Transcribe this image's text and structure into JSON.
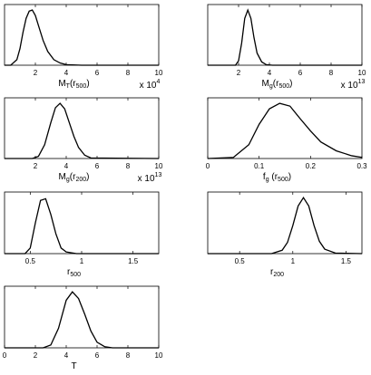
{
  "chart_data": [
    {
      "type": "line",
      "xlabel": [
        "M",
        "T",
        "(r",
        "500",
        ")"
      ],
      "offset_text": [
        "x 10",
        "4"
      ],
      "xlim": [
        0,
        10
      ],
      "ylim": [
        0,
        1.1
      ],
      "xticks": [
        2,
        4,
        6,
        8,
        10
      ],
      "color": "#000000",
      "x": [
        0,
        0.4,
        0.8,
        1.0,
        1.2,
        1.4,
        1.6,
        1.8,
        2.0,
        2.2,
        2.5,
        2.8,
        3.2,
        3.6,
        4.0,
        5,
        10
      ],
      "values": [
        0,
        0,
        0.1,
        0.3,
        0.6,
        0.85,
        0.98,
        1.0,
        0.9,
        0.72,
        0.45,
        0.25,
        0.1,
        0.04,
        0.01,
        0,
        0
      ]
    },
    {
      "type": "line",
      "xlabel": [
        "M",
        "g",
        "(r",
        "500",
        ")"
      ],
      "offset_text": [
        "x 10",
        "13"
      ],
      "xlim": [
        0,
        10
      ],
      "ylim": [
        0,
        1.1
      ],
      "xticks": [
        2,
        4,
        6,
        8,
        10
      ],
      "color": "#000000",
      "x": [
        0,
        1.8,
        2.0,
        2.2,
        2.4,
        2.6,
        2.8,
        3.0,
        3.2,
        3.5,
        3.8,
        4.2,
        10
      ],
      "values": [
        0,
        0,
        0.08,
        0.4,
        0.85,
        1.0,
        0.85,
        0.5,
        0.22,
        0.06,
        0.01,
        0,
        0
      ]
    },
    {
      "type": "line",
      "xlabel": [
        "M",
        "g",
        "(r",
        "200",
        ")"
      ],
      "offset_text": [
        "x 10",
        "13"
      ],
      "xlim": [
        0,
        10
      ],
      "ylim": [
        0,
        1.1
      ],
      "xticks": [
        2,
        4,
        6,
        8,
        10
      ],
      "color": "#000000",
      "x": [
        0,
        1.8,
        2.2,
        2.6,
        3.0,
        3.3,
        3.6,
        3.9,
        4.2,
        4.5,
        4.8,
        5.2,
        5.6,
        10
      ],
      "values": [
        0,
        0,
        0.04,
        0.25,
        0.65,
        0.92,
        1.0,
        0.9,
        0.65,
        0.4,
        0.2,
        0.06,
        0.01,
        0
      ]
    },
    {
      "type": "line",
      "xlabel": [
        "f",
        "g",
        " (r",
        "500",
        ")"
      ],
      "xlim": [
        0,
        0.3
      ],
      "ylim": [
        0,
        1.1
      ],
      "xticks": [
        0,
        0.1,
        0.2,
        0.3
      ],
      "color": "#000000",
      "x": [
        0,
        0.05,
        0.08,
        0.1,
        0.12,
        0.14,
        0.16,
        0.18,
        0.2,
        0.22,
        0.25,
        0.28,
        0.3
      ],
      "values": [
        0,
        0.02,
        0.25,
        0.62,
        0.9,
        1.0,
        0.95,
        0.72,
        0.5,
        0.3,
        0.14,
        0.05,
        0.02
      ]
    },
    {
      "type": "line",
      "xlabel": [
        "r",
        "500"
      ],
      "xlim": [
        0.25,
        1.75
      ],
      "ylim": [
        0,
        1.1
      ],
      "xticks": [
        0.5,
        1,
        1.5
      ],
      "color": "#000000",
      "x": [
        0.25,
        0.45,
        0.5,
        0.55,
        0.6,
        0.65,
        0.7,
        0.75,
        0.8,
        0.85,
        0.95,
        1.75
      ],
      "values": [
        0,
        0,
        0.1,
        0.55,
        0.95,
        0.98,
        0.7,
        0.35,
        0.1,
        0.03,
        0,
        0
      ]
    },
    {
      "type": "line",
      "xlabel": [
        "r",
        "200"
      ],
      "xlim": [
        0.2,
        1.65
      ],
      "ylim": [
        0,
        1.1
      ],
      "xticks": [
        0.5,
        1,
        1.5
      ],
      "color": "#000000",
      "x": [
        0.2,
        0.8,
        0.9,
        0.95,
        1.0,
        1.05,
        1.1,
        1.15,
        1.2,
        1.25,
        1.3,
        1.4,
        1.65
      ],
      "values": [
        0,
        0,
        0.06,
        0.2,
        0.5,
        0.85,
        1.0,
        0.85,
        0.5,
        0.22,
        0.08,
        0.01,
        0
      ]
    },
    {
      "type": "line",
      "xlabel": [
        "T"
      ],
      "xlim": [
        0,
        10
      ],
      "ylim": [
        0,
        1.1
      ],
      "xticks": [
        0,
        2,
        4,
        6,
        8,
        10
      ],
      "color": "#000000",
      "x": [
        0,
        2.5,
        3,
        3.5,
        4,
        4.4,
        4.8,
        5.2,
        5.6,
        6,
        6.5,
        7,
        10
      ],
      "values": [
        0,
        0,
        0.05,
        0.35,
        0.85,
        1.0,
        0.88,
        0.6,
        0.3,
        0.1,
        0.02,
        0,
        0
      ]
    }
  ]
}
